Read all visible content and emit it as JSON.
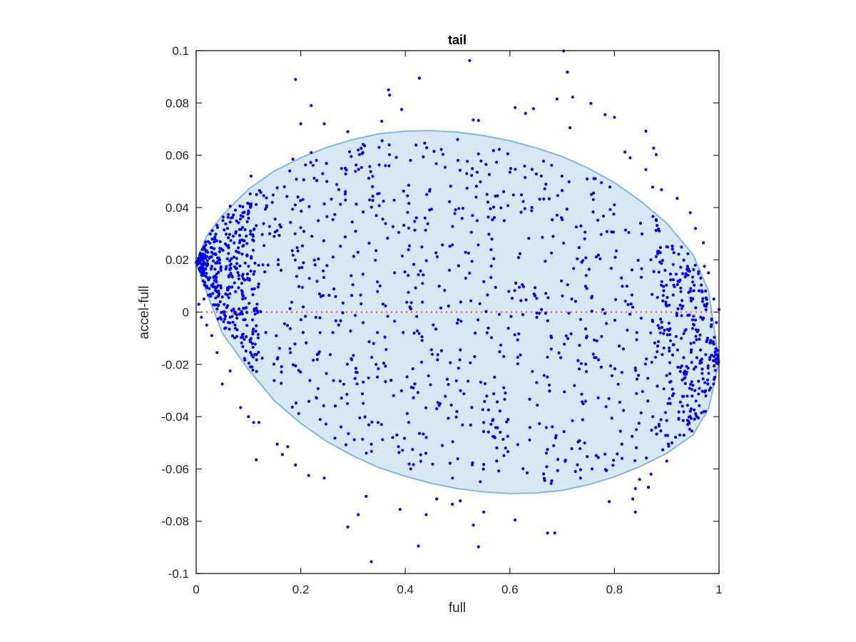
{
  "chart_data": {
    "type": "scatter",
    "title": "tail",
    "xlabel": "full",
    "ylabel": "accel-full",
    "xlim": [
      0,
      1
    ],
    "ylim": [
      -0.1,
      0.1
    ],
    "xticks": [
      0,
      0.2,
      0.4,
      0.6,
      0.8,
      1
    ],
    "xtick_labels": [
      "0",
      "0.2",
      "0.4",
      "0.6",
      "0.8",
      "1"
    ],
    "yticks": [
      -0.1,
      -0.08,
      -0.06,
      -0.04,
      -0.02,
      0,
      0.02,
      0.04,
      0.06,
      0.08,
      0.1
    ],
    "ytick_labels": [
      "-0.1",
      "-0.08",
      "-0.06",
      "-0.04",
      "-0.02",
      "0",
      "0.02",
      "0.04",
      "0.06",
      "0.08",
      "0.1"
    ],
    "grid": false,
    "colors": {
      "points": "#0000ee",
      "ellipse_fill": "#d6e8f4",
      "ellipse_stroke": "#7fb8dc",
      "zero_line": "#ff3b3b",
      "axes": "#262626"
    },
    "zero_line": {
      "y": 0,
      "style": "dotted"
    },
    "ellipse_band": {
      "x": [
        0,
        0.02,
        0.05,
        0.1,
        0.15,
        0.2,
        0.25,
        0.3,
        0.35,
        0.4,
        0.45,
        0.5,
        0.55,
        0.6,
        0.65,
        0.7,
        0.75,
        0.8,
        0.85,
        0.9,
        0.95,
        0.98,
        1
      ],
      "upper": [
        0.019,
        0.029,
        0.037,
        0.047,
        0.054,
        0.059,
        0.063,
        0.066,
        0.0682,
        0.0692,
        0.0694,
        0.0688,
        0.0675,
        0.0655,
        0.0628,
        0.0595,
        0.055,
        0.0495,
        0.0425,
        0.034,
        0.022,
        0.008,
        -0.019
      ],
      "lower": [
        0.019,
        0.0075,
        -0.008,
        -0.022,
        -0.034,
        -0.0425,
        -0.0495,
        -0.055,
        -0.0595,
        -0.0628,
        -0.0655,
        -0.0675,
        -0.0688,
        -0.0694,
        -0.0692,
        -0.0682,
        -0.066,
        -0.063,
        -0.059,
        -0.054,
        -0.047,
        -0.037,
        -0.019
      ]
    },
    "series": [
      {
        "points": [
          [
            0.19,
            0.089
          ],
          [
            0.22,
            0.079
          ],
          [
            0.2,
            0.072
          ],
          [
            0.245,
            0.072
          ],
          [
            0.29,
            0.069
          ],
          [
            0.355,
            0.073
          ],
          [
            0.368,
            0.085
          ],
          [
            0.37,
            0.083
          ],
          [
            0.393,
            0.0775
          ],
          [
            0.427,
            0.0895
          ],
          [
            0.523,
            0.0962
          ],
          [
            0.53,
            0.0735
          ],
          [
            0.54,
            0.0733
          ],
          [
            0.61,
            0.0782
          ],
          [
            0.63,
            0.076
          ],
          [
            0.645,
            0.0778
          ],
          [
            0.69,
            0.0815
          ],
          [
            0.703,
            0.0999
          ],
          [
            0.71,
            0.0918
          ],
          [
            0.72,
            0.0822
          ],
          [
            0.755,
            0.0798
          ],
          [
            0.782,
            0.0755
          ],
          [
            0.8,
            0.0745
          ],
          [
            0.715,
            0.0705
          ],
          [
            0.82,
            0.0612
          ],
          [
            0.83,
            0.059
          ],
          [
            0.86,
            0.0692
          ],
          [
            0.875,
            0.0627
          ],
          [
            0.88,
            0.0602
          ],
          [
            0.86,
            0.0545
          ],
          [
            0.873,
            0.0478
          ],
          [
            0.89,
            0.0468
          ],
          [
            0.92,
            0.0435
          ],
          [
            0.945,
            0.038
          ],
          [
            0.955,
            0.032
          ],
          [
            0.97,
            0.0265
          ],
          [
            0.972,
            0.0175
          ],
          [
            0.965,
            0.013
          ],
          [
            0.98,
            0.015
          ],
          [
            0.99,
            0.005
          ],
          [
            1.0,
            0.001
          ],
          [
            0.995,
            -0.004
          ],
          [
            0.978,
            -0.01
          ],
          [
            0.967,
            -0.018
          ],
          [
            0.95,
            -0.028
          ],
          [
            0.93,
            -0.036
          ],
          [
            0.94,
            -0.043
          ],
          [
            0.925,
            -0.047
          ],
          [
            0.91,
            -0.05
          ],
          [
            0.9,
            -0.057
          ],
          [
            0.87,
            -0.062
          ],
          [
            0.865,
            -0.067
          ],
          [
            0.848,
            -0.064
          ],
          [
            0.84,
            -0.0675
          ],
          [
            0.835,
            -0.0715
          ],
          [
            0.84,
            -0.0765
          ],
          [
            0.79,
            -0.0725
          ],
          [
            0.735,
            -0.0635
          ],
          [
            0.686,
            -0.0845
          ],
          [
            0.672,
            -0.0845
          ],
          [
            0.61,
            -0.0795
          ],
          [
            0.55,
            -0.0765
          ],
          [
            0.53,
            -0.0815
          ],
          [
            0.54,
            -0.0898
          ],
          [
            0.505,
            -0.0722
          ],
          [
            0.49,
            -0.0735
          ],
          [
            0.46,
            -0.0715
          ],
          [
            0.44,
            -0.0775
          ],
          [
            0.425,
            -0.0895
          ],
          [
            0.39,
            -0.0755
          ],
          [
            0.335,
            -0.0955
          ],
          [
            0.325,
            -0.0705
          ],
          [
            0.31,
            -0.0775
          ],
          [
            0.29,
            -0.0822
          ],
          [
            0.245,
            -0.0635
          ],
          [
            0.215,
            -0.0625
          ],
          [
            0.19,
            -0.0585
          ],
          [
            0.165,
            -0.0545
          ],
          [
            0.155,
            -0.0505
          ],
          [
            0.175,
            -0.0515
          ],
          [
            0.115,
            -0.0565
          ],
          [
            0.12,
            -0.0422
          ],
          [
            0.11,
            -0.0422
          ],
          [
            0.1,
            -0.04
          ],
          [
            0.085,
            -0.0365
          ],
          [
            0.065,
            -0.0225
          ],
          [
            0.05,
            -0.0275
          ],
          [
            0.04,
            -0.0155
          ],
          [
            0.03,
            -0.009
          ],
          [
            0.02,
            -0.005
          ],
          [
            0.01,
            -0.002
          ],
          [
            0.005,
            0.003
          ],
          [
            0.015,
            0.005
          ],
          [
            0.025,
            0.009
          ],
          [
            0.035,
            0.012
          ],
          [
            0.045,
            0.02
          ],
          [
            0.06,
            0.032
          ],
          [
            0.065,
            0.0405
          ],
          [
            0.075,
            0.039
          ],
          [
            0.105,
            0.052
          ],
          [
            0.155,
            0.0475
          ],
          [
            0.185,
            0.0585
          ],
          [
            0.22,
            0.061
          ],
          [
            0.23,
            0.058
          ],
          [
            0.285,
            0.055
          ],
          [
            0.31,
            0.062
          ],
          [
            0.35,
            0.063
          ],
          [
            0.41,
            0.058
          ],
          [
            0.455,
            0.0615
          ],
          [
            0.5,
            0.066
          ],
          [
            0.54,
            0.0605
          ],
          [
            0.6,
            0.0535
          ],
          [
            0.66,
            0.052
          ],
          [
            0.7,
            0.0465
          ],
          [
            0.76,
            0.0455
          ],
          [
            0.8,
            0.041
          ],
          [
            0.85,
            0.034
          ],
          [
            0.9,
            0.025
          ]
        ]
      }
    ]
  }
}
